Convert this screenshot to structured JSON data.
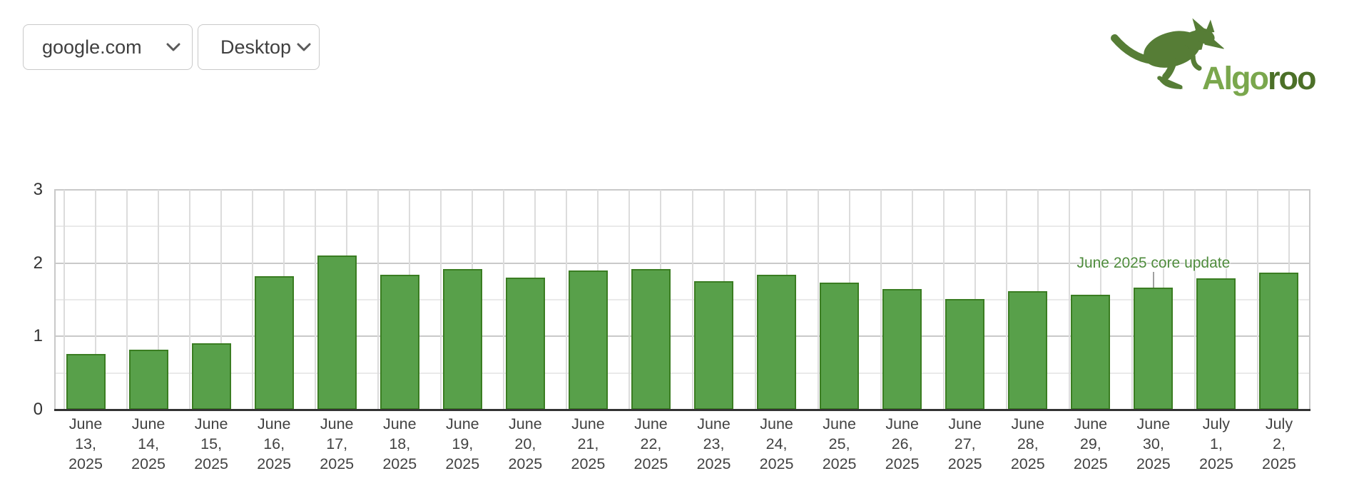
{
  "controls": {
    "site_select": {
      "value": "google.com",
      "icon": "chevron-down-icon"
    },
    "device_select": {
      "value": "Desktop",
      "icon": "chevron-down-icon"
    }
  },
  "logo": {
    "brand_primary_text": "Algo",
    "brand_secondary_text": "roo",
    "primary_color": "#7aa74d",
    "secondary_color": "#4c7028",
    "kangaroo_color": "#567d36",
    "icon": "kangaroo-icon"
  },
  "chart_data": {
    "type": "bar",
    "title": "",
    "xlabel": "",
    "ylabel": "",
    "categories": [
      "June 13, 2025",
      "June 14, 2025",
      "June 15, 2025",
      "June 16, 2025",
      "June 17, 2025",
      "June 18, 2025",
      "June 19, 2025",
      "June 20, 2025",
      "June 21, 2025",
      "June 22, 2025",
      "June 23, 2025",
      "June 24, 2025",
      "June 25, 2025",
      "June 26, 2025",
      "June 27, 2025",
      "June 28, 2025",
      "June 29, 2025",
      "June 30, 2025",
      "July 1, 2025",
      "July 2, 2025"
    ],
    "values": [
      0.76,
      0.82,
      0.91,
      1.82,
      2.1,
      1.84,
      1.92,
      1.8,
      1.9,
      1.92,
      1.75,
      1.84,
      1.73,
      1.65,
      1.51,
      1.62,
      1.57,
      1.67,
      1.79,
      1.87
    ],
    "ylim": [
      0,
      3
    ],
    "y_ticks": [
      0,
      1,
      2,
      3
    ],
    "y_minor_step": 0.5,
    "grid": "on",
    "legend": "none",
    "bar_color": "#58a04a",
    "bar_border_color": "#3a7d22",
    "axis_text_color": "#333333",
    "gridline_major_color": "#c9c9c9",
    "gridline_minor_color": "#eaeaea",
    "gridline_vertical_color": "#dcdcdc",
    "annotation": {
      "text": "June 2025 core update",
      "category": "June 30, 2025",
      "anchor_value": 2,
      "color": "#4e8b3c"
    }
  }
}
